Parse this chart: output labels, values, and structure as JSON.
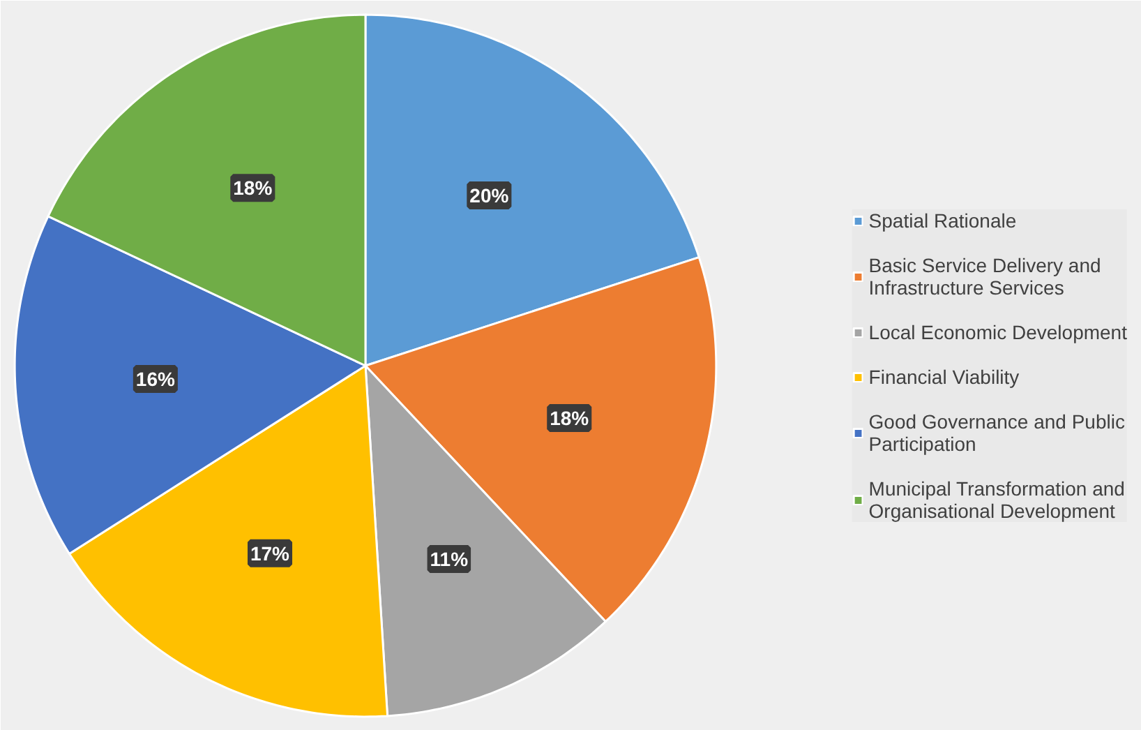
{
  "chart_data": {
    "type": "pie",
    "categories": [
      "Spatial Rationale",
      "Basic Service Delivery and Infrastructure Services",
      "Local Economic Development",
      "Financial Viability",
      "Good Governance and Public Participation",
      "Municipal Transformation and Organisational Development"
    ],
    "values": [
      20,
      18,
      11,
      17,
      16,
      18
    ],
    "value_labels": [
      "20%",
      "18%",
      "11%",
      "17%",
      "16%",
      "18%"
    ],
    "colors": [
      "#5b9bd5",
      "#ed7d31",
      "#a5a5a5",
      "#ffc000",
      "#4472c4",
      "#70ad47"
    ],
    "legend": "right"
  }
}
